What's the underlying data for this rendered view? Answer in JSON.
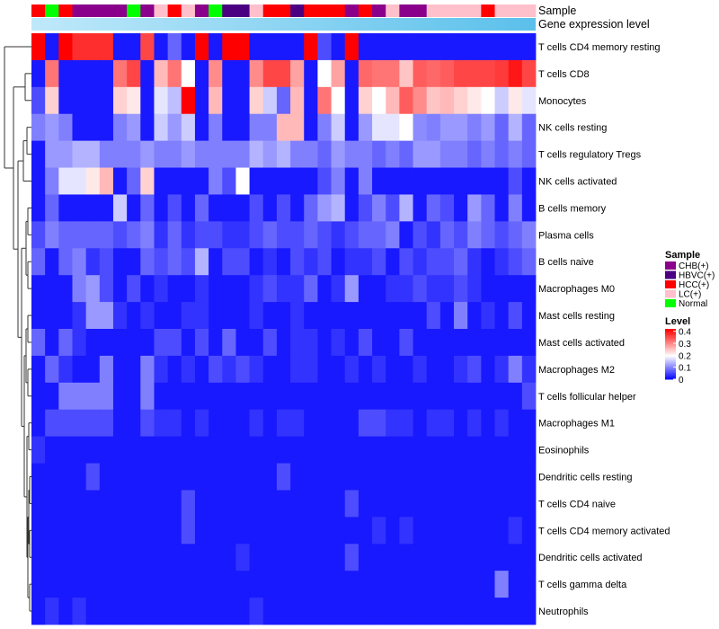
{
  "chart_data": {
    "type": "heatmap",
    "title": "",
    "annotations": {
      "sample_label": "Sample",
      "gene_label": "Gene expression level",
      "sample_row": [
        "HCC(+)",
        "Normal",
        "HCC(+)",
        "CHB(+)",
        "CHB(+)",
        "CHB(+)",
        "CHB(+)",
        "Normal",
        "CHB(+)",
        "LC(+)",
        "HCC(+)",
        "LC(+)",
        "CHB(+)",
        "Normal",
        "HBVC(+)",
        "HBVC(+)",
        "LC(+)",
        "HCC(+)",
        "HCC(+)",
        "HBVC(+)",
        "HCC(+)",
        "HCC(+)",
        "HCC(+)",
        "CHB(+)",
        "HCC(+)",
        "CHB(+)",
        "LC(+)",
        "CHB(+)",
        "CHB(+)",
        "LC(+)",
        "LC(+)",
        "LC(+)",
        "LC(+)",
        "HCC(+)",
        "LC(+)",
        "LC(+)",
        "LC(+)"
      ]
    },
    "rows": [
      "T cells CD4 memory resting",
      "T cells CD8",
      "Monocytes",
      "NK cells resting",
      "T cells regulatory  Tregs",
      "NK cells activated",
      "B cells memory",
      "Plasma cells",
      "B cells naive",
      "Macrophages M0",
      "Mast cells resting",
      "Mast cells activated",
      "Macrophages M2",
      "T cells follicular helper",
      "Macrophages M1",
      "Eosinophils",
      "Dendritic cells resting",
      "T cells CD4 naive",
      "T cells CD4 memory activated",
      "Dendritic cells activated",
      "T cells gamma delta",
      "Neutrophils"
    ],
    "values": [
      [
        0.42,
        0.02,
        0.42,
        0.38,
        0.38,
        0.38,
        0.02,
        0.02,
        0.36,
        0.02,
        0.08,
        0.02,
        0.42,
        0.02,
        0.42,
        0.42,
        0.02,
        0.02,
        0.02,
        0.02,
        0.42,
        0.06,
        0.02,
        0.42,
        0.02,
        0.02,
        0.02,
        0.02,
        0.02,
        0.02,
        0.02,
        0.02,
        0.02,
        0.02,
        0.02,
        0.02,
        0.02
      ],
      [
        0.02,
        0.32,
        0.02,
        0.02,
        0.02,
        0.02,
        0.32,
        0.36,
        0.02,
        0.26,
        0.32,
        0.2,
        0.02,
        0.3,
        0.02,
        0.02,
        0.3,
        0.36,
        0.36,
        0.28,
        0.02,
        0.2,
        0.28,
        0.02,
        0.33,
        0.32,
        0.32,
        0.25,
        0.34,
        0.33,
        0.34,
        0.36,
        0.36,
        0.36,
        0.37,
        0.4,
        0.36
      ],
      [
        0.06,
        0.24,
        0.02,
        0.02,
        0.02,
        0.02,
        0.24,
        0.22,
        0.02,
        0.18,
        0.15,
        0.42,
        0.02,
        0.26,
        0.02,
        0.02,
        0.24,
        0.16,
        0.08,
        0.26,
        0.02,
        0.32,
        0.2,
        0.02,
        0.24,
        0.2,
        0.26,
        0.34,
        0.3,
        0.25,
        0.26,
        0.24,
        0.22,
        0.2,
        0.16,
        0.22,
        0.18
      ],
      [
        0.1,
        0.12,
        0.1,
        0.02,
        0.02,
        0.02,
        0.1,
        0.12,
        0.02,
        0.16,
        0.12,
        0.16,
        0.02,
        0.1,
        0.02,
        0.02,
        0.1,
        0.1,
        0.26,
        0.26,
        0.02,
        0.1,
        0.16,
        0.02,
        0.12,
        0.18,
        0.18,
        0.2,
        0.11,
        0.1,
        0.12,
        0.12,
        0.1,
        0.12,
        0.08,
        0.14,
        0.08
      ],
      [
        0.02,
        0.12,
        0.12,
        0.14,
        0.14,
        0.1,
        0.1,
        0.1,
        0.12,
        0.1,
        0.1,
        0.12,
        0.1,
        0.1,
        0.1,
        0.1,
        0.14,
        0.12,
        0.14,
        0.1,
        0.1,
        0.08,
        0.12,
        0.1,
        0.1,
        0.08,
        0.1,
        0.08,
        0.12,
        0.12,
        0.1,
        0.1,
        0.08,
        0.1,
        0.08,
        0.1,
        0.08
      ],
      [
        0.02,
        0.1,
        0.18,
        0.18,
        0.22,
        0.26,
        0.02,
        0.08,
        0.24,
        0.02,
        0.02,
        0.02,
        0.02,
        0.1,
        0.06,
        0.2,
        0.02,
        0.02,
        0.02,
        0.02,
        0.02,
        0.06,
        0.1,
        0.02,
        0.1,
        0.02,
        0.02,
        0.02,
        0.02,
        0.02,
        0.02,
        0.02,
        0.02,
        0.02,
        0.02,
        0.06,
        0.02
      ],
      [
        0.02,
        0.08,
        0.02,
        0.02,
        0.02,
        0.02,
        0.16,
        0.02,
        0.08,
        0.02,
        0.06,
        0.02,
        0.08,
        0.02,
        0.02,
        0.02,
        0.06,
        0.02,
        0.06,
        0.02,
        0.08,
        0.12,
        0.14,
        0.02,
        0.06,
        0.1,
        0.06,
        0.14,
        0.02,
        0.08,
        0.06,
        0.02,
        0.12,
        0.08,
        0.02,
        0.1,
        0.02
      ],
      [
        0.06,
        0.1,
        0.08,
        0.08,
        0.08,
        0.08,
        0.06,
        0.08,
        0.1,
        0.04,
        0.08,
        0.04,
        0.06,
        0.06,
        0.04,
        0.04,
        0.06,
        0.08,
        0.06,
        0.06,
        0.08,
        0.06,
        0.04,
        0.06,
        0.08,
        0.08,
        0.1,
        0.02,
        0.06,
        0.04,
        0.08,
        0.06,
        0.1,
        0.08,
        0.06,
        0.08,
        0.1
      ],
      [
        0.08,
        0.02,
        0.08,
        0.1,
        0.04,
        0.06,
        0.02,
        0.02,
        0.08,
        0.06,
        0.08,
        0.06,
        0.14,
        0.02,
        0.06,
        0.06,
        0.02,
        0.04,
        0.02,
        0.06,
        0.04,
        0.06,
        0.02,
        0.04,
        0.04,
        0.06,
        0.02,
        0.06,
        0.04,
        0.06,
        0.06,
        0.08,
        0.04,
        0.02,
        0.04,
        0.06,
        0.08
      ],
      [
        0.02,
        0.02,
        0.02,
        0.1,
        0.12,
        0.06,
        0.02,
        0.06,
        0.02,
        0.04,
        0.02,
        0.02,
        0.04,
        0.02,
        0.02,
        0.02,
        0.04,
        0.06,
        0.04,
        0.04,
        0.08,
        0.02,
        0.04,
        0.12,
        0.02,
        0.02,
        0.04,
        0.04,
        0.06,
        0.04,
        0.04,
        0.06,
        0.04,
        0.02,
        0.02,
        0.02,
        0.02
      ],
      [
        0.02,
        0.02,
        0.02,
        0.04,
        0.12,
        0.12,
        0.04,
        0.02,
        0.04,
        0.02,
        0.02,
        0.04,
        0.04,
        0.02,
        0.02,
        0.02,
        0.04,
        0.02,
        0.02,
        0.04,
        0.02,
        0.02,
        0.02,
        0.02,
        0.02,
        0.02,
        0.02,
        0.02,
        0.02,
        0.06,
        0.02,
        0.1,
        0.02,
        0.04,
        0.02,
        0.06,
        0.02
      ],
      [
        0.08,
        0.02,
        0.08,
        0.04,
        0.02,
        0.02,
        0.02,
        0.02,
        0.02,
        0.06,
        0.06,
        0.02,
        0.06,
        0.02,
        0.08,
        0.02,
        0.02,
        0.06,
        0.02,
        0.04,
        0.04,
        0.02,
        0.04,
        0.02,
        0.06,
        0.02,
        0.02,
        0.06,
        0.02,
        0.02,
        0.02,
        0.02,
        0.02,
        0.02,
        0.02,
        0.02,
        0.02
      ],
      [
        0.02,
        0.08,
        0.04,
        0.02,
        0.02,
        0.1,
        0.02,
        0.02,
        0.1,
        0.04,
        0.02,
        0.04,
        0.02,
        0.06,
        0.04,
        0.06,
        0.04,
        0.02,
        0.02,
        0.04,
        0.04,
        0.02,
        0.02,
        0.04,
        0.02,
        0.04,
        0.02,
        0.02,
        0.04,
        0.02,
        0.02,
        0.04,
        0.06,
        0.02,
        0.04,
        0.1,
        0.04
      ],
      [
        0.02,
        0.02,
        0.1,
        0.1,
        0.1,
        0.1,
        0.02,
        0.02,
        0.1,
        0.02,
        0.02,
        0.02,
        0.02,
        0.02,
        0.02,
        0.02,
        0.02,
        0.02,
        0.02,
        0.02,
        0.02,
        0.02,
        0.02,
        0.02,
        0.02,
        0.02,
        0.02,
        0.02,
        0.02,
        0.02,
        0.02,
        0.02,
        0.02,
        0.02,
        0.02,
        0.02,
        0.06
      ],
      [
        0.02,
        0.06,
        0.06,
        0.06,
        0.06,
        0.06,
        0.02,
        0.02,
        0.06,
        0.04,
        0.04,
        0.02,
        0.04,
        0.02,
        0.02,
        0.02,
        0.04,
        0.02,
        0.04,
        0.04,
        0.02,
        0.02,
        0.02,
        0.02,
        0.06,
        0.06,
        0.04,
        0.04,
        0.02,
        0.04,
        0.04,
        0.02,
        0.04,
        0.02,
        0.04,
        0.02,
        0.02
      ],
      [
        0.04,
        0.02,
        0.02,
        0.02,
        0.02,
        0.02,
        0.02,
        0.02,
        0.02,
        0.02,
        0.02,
        0.02,
        0.02,
        0.02,
        0.02,
        0.02,
        0.02,
        0.02,
        0.02,
        0.02,
        0.02,
        0.02,
        0.02,
        0.02,
        0.02,
        0.02,
        0.02,
        0.02,
        0.02,
        0.02,
        0.02,
        0.02,
        0.02,
        0.02,
        0.02,
        0.02,
        0.02
      ],
      [
        0.02,
        0.02,
        0.02,
        0.02,
        0.06,
        0.02,
        0.02,
        0.02,
        0.02,
        0.02,
        0.02,
        0.02,
        0.02,
        0.02,
        0.02,
        0.02,
        0.02,
        0.02,
        0.06,
        0.02,
        0.02,
        0.02,
        0.02,
        0.02,
        0.02,
        0.02,
        0.02,
        0.02,
        0.02,
        0.02,
        0.02,
        0.02,
        0.02,
        0.02,
        0.02,
        0.02,
        0.02
      ],
      [
        0.02,
        0.02,
        0.02,
        0.02,
        0.02,
        0.02,
        0.02,
        0.02,
        0.02,
        0.02,
        0.02,
        0.06,
        0.02,
        0.02,
        0.02,
        0.02,
        0.02,
        0.02,
        0.02,
        0.02,
        0.02,
        0.02,
        0.02,
        0.06,
        0.02,
        0.02,
        0.02,
        0.02,
        0.02,
        0.02,
        0.02,
        0.02,
        0.02,
        0.02,
        0.02,
        0.02,
        0.02
      ],
      [
        0.02,
        0.02,
        0.02,
        0.02,
        0.02,
        0.02,
        0.02,
        0.02,
        0.02,
        0.02,
        0.02,
        0.06,
        0.02,
        0.02,
        0.02,
        0.02,
        0.02,
        0.02,
        0.02,
        0.02,
        0.02,
        0.02,
        0.02,
        0.02,
        0.02,
        0.04,
        0.02,
        0.04,
        0.02,
        0.02,
        0.02,
        0.02,
        0.02,
        0.02,
        0.02,
        0.04,
        0.02
      ],
      [
        0.02,
        0.02,
        0.02,
        0.02,
        0.02,
        0.02,
        0.02,
        0.02,
        0.02,
        0.02,
        0.02,
        0.02,
        0.02,
        0.02,
        0.02,
        0.04,
        0.02,
        0.02,
        0.02,
        0.02,
        0.02,
        0.02,
        0.02,
        0.06,
        0.02,
        0.02,
        0.02,
        0.02,
        0.02,
        0.02,
        0.02,
        0.02,
        0.02,
        0.02,
        0.02,
        0.02,
        0.02
      ],
      [
        0.02,
        0.02,
        0.02,
        0.02,
        0.02,
        0.02,
        0.02,
        0.02,
        0.02,
        0.02,
        0.02,
        0.02,
        0.02,
        0.02,
        0.02,
        0.02,
        0.02,
        0.02,
        0.02,
        0.02,
        0.02,
        0.02,
        0.02,
        0.02,
        0.02,
        0.02,
        0.02,
        0.02,
        0.02,
        0.02,
        0.02,
        0.02,
        0.02,
        0.02,
        0.1,
        0.02,
        0.02
      ],
      [
        0.02,
        0.04,
        0.02,
        0.04,
        0.02,
        0.02,
        0.02,
        0.02,
        0.02,
        0.02,
        0.02,
        0.02,
        0.02,
        0.02,
        0.02,
        0.02,
        0.04,
        0.02,
        0.02,
        0.02,
        0.02,
        0.02,
        0.02,
        0.02,
        0.02,
        0.02,
        0.02,
        0.02,
        0.02,
        0.02,
        0.02,
        0.02,
        0.02,
        0.02,
        0.02,
        0.02,
        0.02
      ]
    ],
    "legend": {
      "sample_title": "Sample",
      "sample_items": [
        {
          "name": "CHB(+)",
          "color": "#8B008B"
        },
        {
          "name": "HBVC(+)",
          "color": "#4B0082"
        },
        {
          "name": "HCC(+)",
          "color": "#FF0000"
        },
        {
          "name": "LC(+)",
          "color": "#FFC0CB"
        },
        {
          "name": "Normal",
          "color": "#00FF00"
        }
      ],
      "level_title": "Level",
      "level_ticks": [
        0.4,
        0.3,
        0.2,
        0.1,
        0
      ]
    },
    "colors": {
      "low": "#0000FF",
      "mid": "#FFFFFF",
      "high": "#FF0000",
      "mid_value": 0.2,
      "max_value": 0.42
    },
    "gene_bar_color": "#5BC0EB"
  }
}
